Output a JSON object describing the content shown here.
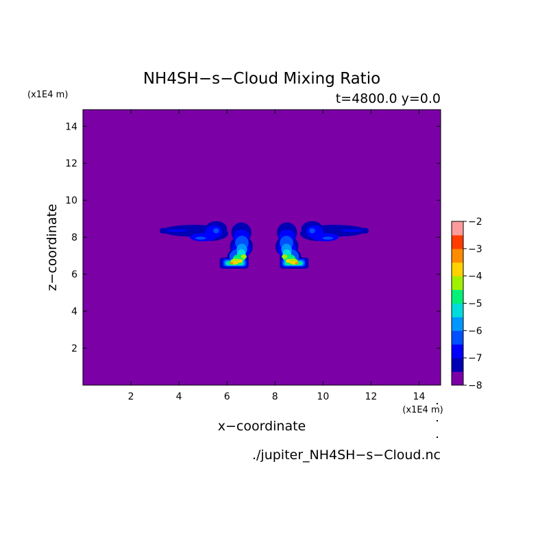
{
  "chart_data": {
    "type": "heatmap",
    "title": "NH4SH−s−Cloud Mixing Ratio",
    "subtitle": "t=4800.0 y=0.0",
    "xlabel": "x−coordinate",
    "ylabel": "z−coordinate",
    "x_unit_label": "(x1E4 m)",
    "y_unit_label": "(x1E4 m)",
    "filename": "./jupiter_NH4SH−s−Cloud.nc",
    "xlim": [
      0,
      14.9
    ],
    "ylim": [
      0,
      14.9
    ],
    "x_ticks": [
      2,
      4,
      6,
      8,
      10,
      12,
      14
    ],
    "y_ticks": [
      2,
      4,
      6,
      8,
      10,
      12,
      14
    ],
    "background_level": -8,
    "colorbar": {
      "levels": [
        -8,
        -7.5,
        -7,
        -6.5,
        -6,
        -5.5,
        -5,
        -4.5,
        -4,
        -3.5,
        -3,
        -2.5,
        -2
      ],
      "tick_labels": [
        "−2",
        "−3",
        "−4",
        "−5",
        "−6",
        "−7",
        "−8"
      ],
      "colors": [
        "#7b00a6",
        "#0000b4",
        "#0000ff",
        "#0050ff",
        "#0096ff",
        "#00dcdc",
        "#00f078",
        "#a0f000",
        "#ffd200",
        "#ff8c00",
        "#ff3c00",
        "#ff9b9b"
      ]
    },
    "features": [
      {
        "name": "left-anvil",
        "x": [
          3.2,
          6.0
        ],
        "z": [
          7.8,
          8.9
        ],
        "level_range": [
          -7.5,
          -6.5
        ]
      },
      {
        "name": "left-plume",
        "x": [
          5.7,
          7.1
        ],
        "z": [
          6.3,
          8.8
        ],
        "level_range": [
          -7.5,
          -3.5
        ]
      },
      {
        "name": "right-plume",
        "x": [
          7.9,
          9.3
        ],
        "z": [
          6.3,
          8.8
        ],
        "level_range": [
          -7.5,
          -3.5
        ]
      },
      {
        "name": "right-anvil",
        "x": [
          9.0,
          11.8
        ],
        "z": [
          7.8,
          8.9
        ],
        "level_range": [
          -7.5,
          -6.5
        ]
      }
    ]
  }
}
